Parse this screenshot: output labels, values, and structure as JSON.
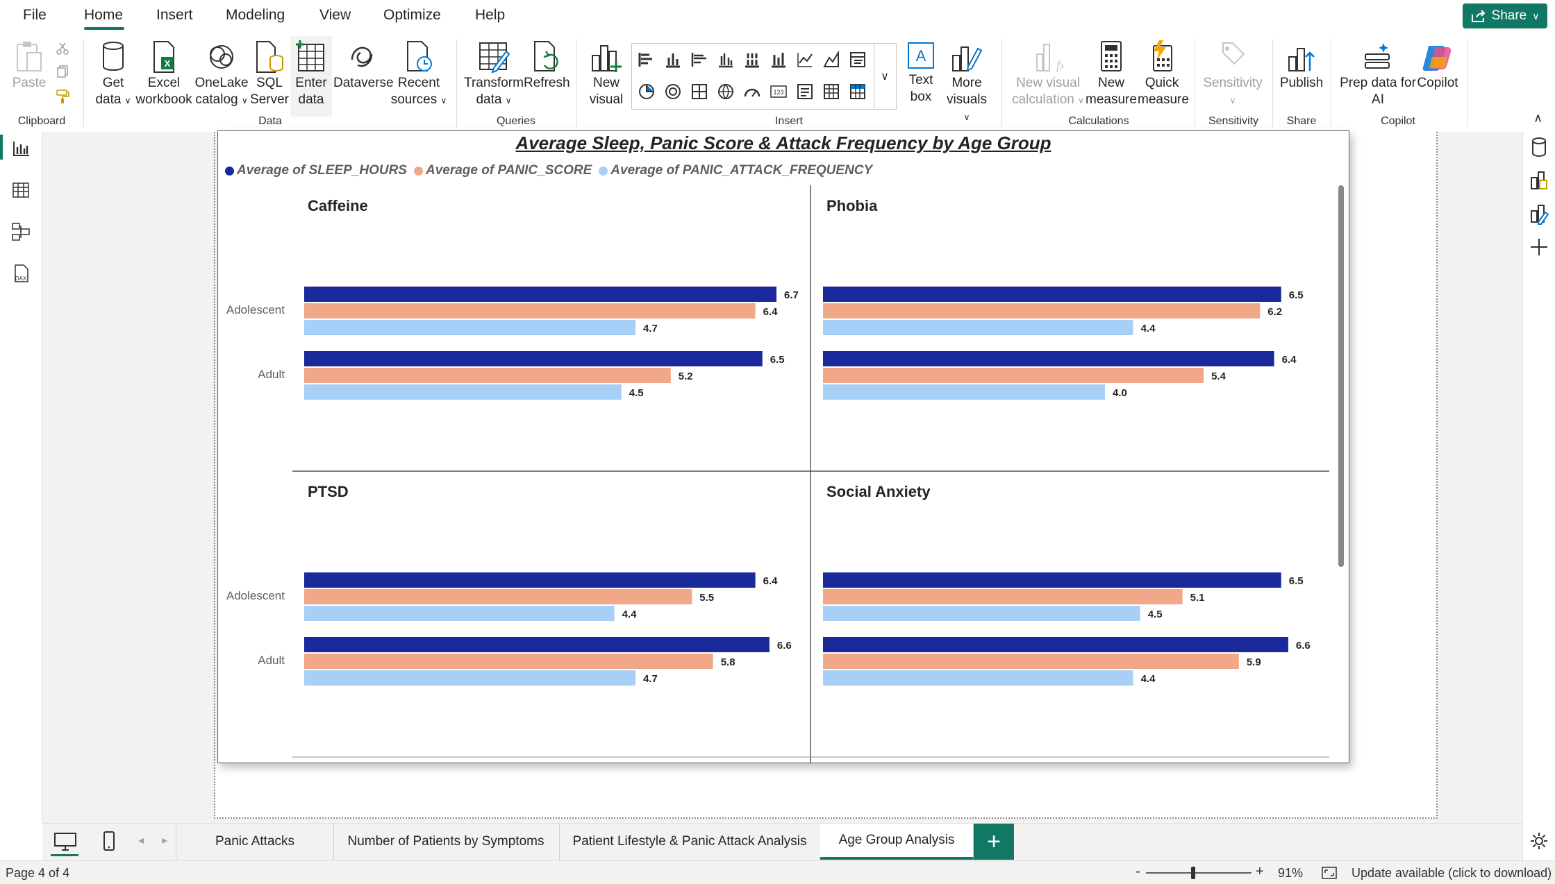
{
  "menu": {
    "items": [
      "File",
      "Home",
      "Insert",
      "Modeling",
      "View",
      "Optimize",
      "Help"
    ],
    "active": "Home",
    "share_label": "Share"
  },
  "ribbon": {
    "clipboard": {
      "paste": "Paste",
      "group": "Clipboard"
    },
    "data": {
      "get_data": [
        "Get",
        "data"
      ],
      "excel": [
        "Excel",
        "workbook"
      ],
      "onelake": [
        "OneLake",
        "catalog"
      ],
      "sql": [
        "SQL",
        "Server"
      ],
      "enter": [
        "Enter",
        "data"
      ],
      "dataverse": "Dataverse",
      "recent": [
        "Recent",
        "sources"
      ],
      "group": "Data"
    },
    "queries": {
      "transform": [
        "Transform",
        "data"
      ],
      "refresh": "Refresh",
      "group": "Queries"
    },
    "insert": {
      "new_visual": [
        "New",
        "visual"
      ],
      "text_box": [
        "Text",
        "box"
      ],
      "more_visuals": [
        "More",
        "visuals"
      ],
      "group": "Insert"
    },
    "calculations": {
      "new_visual_calc": [
        "New visual",
        "calculation"
      ],
      "new_measure": [
        "New",
        "measure"
      ],
      "quick_measure": [
        "Quick",
        "measure"
      ],
      "group": "Calculations"
    },
    "sensitivity": {
      "label": "Sensitivity",
      "group": "Sensitivity"
    },
    "share": {
      "publish": "Publish",
      "group": "Share"
    },
    "copilot": {
      "prep": [
        "Prep data for",
        "AI"
      ],
      "copilot": "Copilot",
      "group": "Copilot"
    }
  },
  "tabs": [
    "Panic Attacks",
    "Number of Patients by Symptoms",
    "Patient Lifestyle & Panic Attack Analysis",
    "Age Group Analysis"
  ],
  "active_tab": "Age Group Analysis",
  "status": {
    "page": "Page 4 of 4",
    "zoom": "91%",
    "update": "Update available (click to download)"
  },
  "colors": {
    "accent": "#117865",
    "sleep": "#1a2a9a",
    "panic": "#f0a888",
    "freq": "#a7d0f8"
  },
  "chart_data": {
    "type": "bar",
    "title": "Average Sleep, Panic Score & Attack Frequency by Age Group",
    "legend": [
      "Average of SLEEP_HOURS",
      "Average of PANIC_SCORE",
      "Average of PANIC_ATTACK_FREQUENCY"
    ],
    "legend_position": "top-left",
    "orientation": "horizontal",
    "small_multiples": true,
    "categories": [
      "Adolescent",
      "Adult"
    ],
    "xlim": [
      0,
      7
    ],
    "panels": [
      {
        "name": "Caffeine",
        "values": [
          [
            6.7,
            6.4,
            4.7
          ],
          [
            6.5,
            5.2,
            4.5
          ]
        ]
      },
      {
        "name": "Phobia",
        "values": [
          [
            6.5,
            6.2,
            4.4
          ],
          [
            6.4,
            5.4,
            4.0
          ]
        ]
      },
      {
        "name": "PTSD",
        "values": [
          [
            6.4,
            5.5,
            4.4
          ],
          [
            6.6,
            5.8,
            4.7
          ]
        ]
      },
      {
        "name": "Social Anxiety",
        "values": [
          [
            6.5,
            5.1,
            4.5
          ],
          [
            6.6,
            5.9,
            4.4
          ]
        ]
      }
    ]
  }
}
